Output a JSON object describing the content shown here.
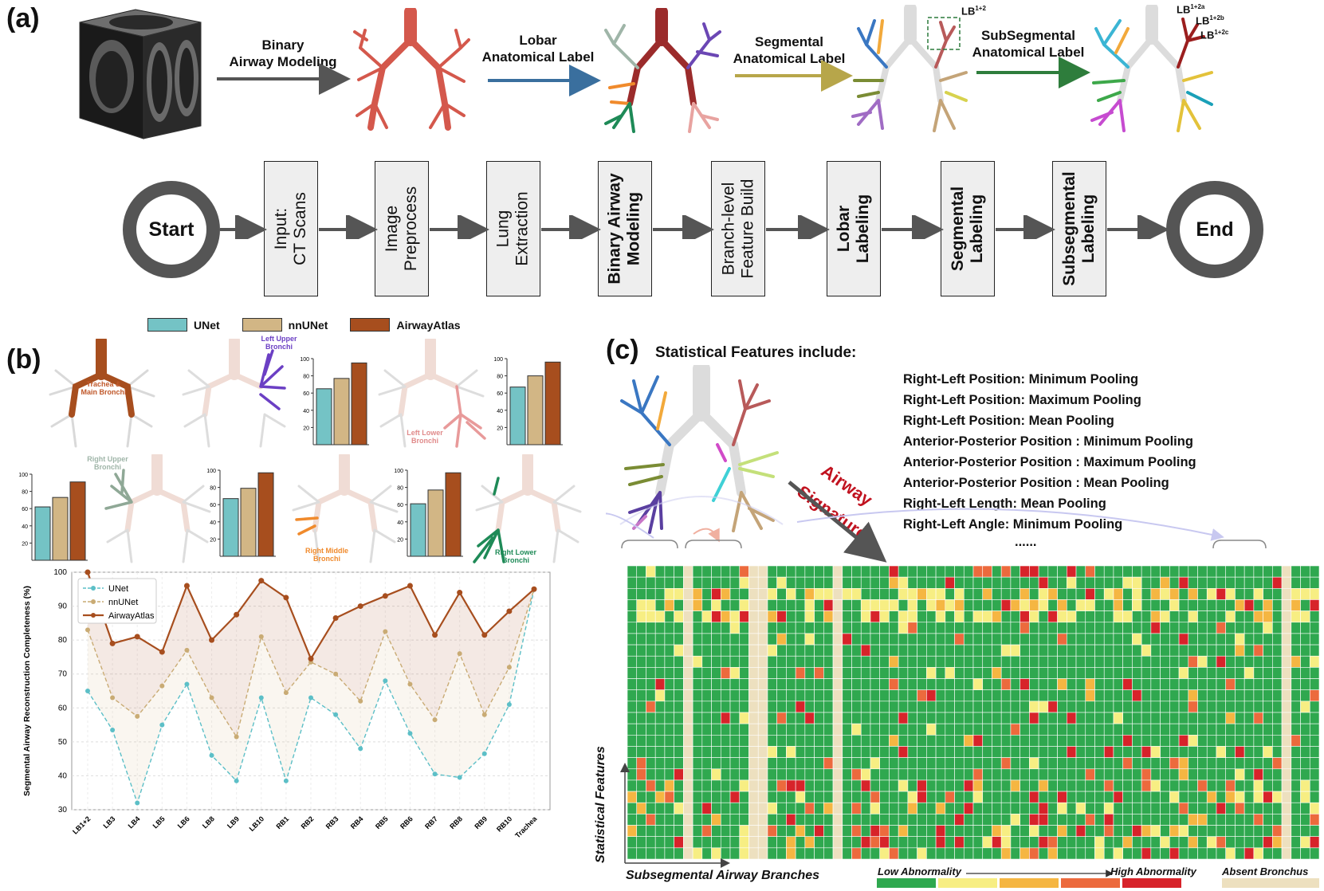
{
  "panel_a": {
    "label": "(a)",
    "arrows": [
      {
        "text": "Binary\nAirway Modeling",
        "color": "#555555"
      },
      {
        "text": "Lobar\nAnatomical Label",
        "color": "#3a6f9e"
      },
      {
        "text": "Segmental\nAnatomical Label",
        "color": "#b7a64a"
      },
      {
        "text": "SubSegmental\nAnatomical Label",
        "color": "#2e7d3c"
      }
    ],
    "annotations": {
      "lb12": "LB",
      "lb12_sup": "1+2",
      "lb12a": "LB",
      "lb12a_sup": "1+2a",
      "lb12b": "LB",
      "lb12b_sup": "1+2b",
      "lb12c": "LB",
      "lb12c_sup": "1+2c"
    },
    "start": "Start",
    "end": "End",
    "steps": [
      {
        "text": "Input:\nCT Scans",
        "bold": false
      },
      {
        "text": "Image\nPreprocess",
        "bold": false
      },
      {
        "text": "Lung\nExtraction",
        "bold": false
      },
      {
        "text": "Binary Airway\nModeling",
        "bold": true
      },
      {
        "text": "Branch-level\nFeature Build",
        "bold": false
      },
      {
        "text": "Lobar\nLabeling",
        "bold": true
      },
      {
        "text": "Segmental\nLabeling",
        "bold": true
      },
      {
        "text": "Subsegmental\nLabeling",
        "bold": true
      }
    ]
  },
  "panel_b": {
    "label": "(b)",
    "legend": [
      {
        "name": "UNet",
        "color": "#74c3c5"
      },
      {
        "name": "nnUNet",
        "color": "#d2b685"
      },
      {
        "name": "AirwayAtlas",
        "color": "#a74e1e"
      }
    ],
    "regions": {
      "trachea": "Trachea &\nMain Bronchi",
      "left_upper": "Left Upper\nBronchi",
      "left_lower": "Left Lower\nBronchi",
      "right_upper": "Right Upper\nBronchi",
      "right_middle": "Right Middle\nBronchi",
      "right_lower": "Right Lower\nBronchi"
    },
    "bar_ticks": [
      "100",
      "80",
      "60",
      "40",
      "20"
    ]
  },
  "panel_c": {
    "label": "(c)",
    "heading": "Statistical Features include:",
    "features": [
      "Right-Left Position: Minimum Pooling",
      "Right-Left Position: Maximum Pooling",
      "Right-Left Position: Mean Pooling",
      "Anterior-Posterior Position : Minimum Pooling",
      "Anterior-Posterior Position : Maximum Pooling",
      "Anterior-Posterior Position : Mean Pooling",
      "Right-Left Length: Mean Pooling",
      "Right-Left Angle: Minimum Pooling",
      "......"
    ],
    "signature": [
      "Airway",
      "Signature"
    ],
    "y_axis": "Statistical Features",
    "x_axis": "Subsegmental Airway Branches",
    "scale_low": "Low Abnormality",
    "scale_high": "High Abnormality",
    "absent": "Absent Bronchus",
    "scale_colors": [
      "#2fa84f",
      "#f7ee83",
      "#f5b642",
      "#ec6a3d",
      "#d7232a"
    ],
    "absent_color": "#ede0bf"
  },
  "chart_data": [
    {
      "type": "bar",
      "title": "Trachea & Main Bronchi / Left Upper Bronchi",
      "categories": [
        "UNet",
        "nnUNet",
        "AirwayAtlas"
      ],
      "values": [
        65,
        77,
        95
      ],
      "ylim": [
        0,
        100
      ]
    },
    {
      "type": "bar",
      "title": "Left Lower Bronchi",
      "categories": [
        "UNet",
        "nnUNet",
        "AirwayAtlas"
      ],
      "values": [
        67,
        80,
        96
      ],
      "ylim": [
        0,
        100
      ]
    },
    {
      "type": "bar",
      "title": "Right Upper Bronchi",
      "categories": [
        "UNet",
        "nnUNet",
        "AirwayAtlas"
      ],
      "values": [
        62,
        73,
        91
      ],
      "ylim": [
        0,
        100
      ]
    },
    {
      "type": "bar",
      "title": "Right Middle Bronchi",
      "categories": [
        "UNet",
        "nnUNet",
        "AirwayAtlas"
      ],
      "values": [
        67,
        79,
        97
      ],
      "ylim": [
        0,
        100
      ]
    },
    {
      "type": "bar",
      "title": "Right Lower Bronchi",
      "categories": [
        "UNet",
        "nnUNet",
        "AirwayAtlas"
      ],
      "values": [
        61,
        77,
        97
      ],
      "ylim": [
        0,
        100
      ]
    },
    {
      "type": "line",
      "ylabel": "Segmental Airway Reconstruction Completeness (%)",
      "ylim": [
        30,
        100
      ],
      "yticks": [
        30,
        40,
        50,
        60,
        70,
        80,
        90,
        100
      ],
      "categories": [
        "LB1+2",
        "LB3",
        "LB4",
        "LB5",
        "LB6",
        "LB8",
        "LB9",
        "LB10",
        "RB1",
        "RB2",
        "RB3",
        "RB4",
        "RB5",
        "RB6",
        "RB7",
        "RB8",
        "RB9",
        "RB10",
        "Trachea"
      ],
      "series": [
        {
          "name": "UNet",
          "color": "#5cbfc7",
          "values": [
            65,
            53.5,
            32,
            55,
            67,
            46,
            38.5,
            63,
            38.5,
            63,
            58,
            48,
            68,
            52.5,
            40.5,
            39.5,
            46.5,
            61,
            95
          ]
        },
        {
          "name": "nnUNet",
          "color": "#c9ab74",
          "values": [
            83,
            63,
            57.5,
            66.5,
            77,
            63,
            51.5,
            81,
            64.5,
            73.5,
            70,
            62,
            82.5,
            67,
            56.5,
            76,
            58,
            72,
            95
          ]
        },
        {
          "name": "AirwayAtlas",
          "color": "#a74e1e",
          "values": [
            100,
            79,
            81,
            76.5,
            96,
            80,
            87.5,
            97.5,
            92.5,
            74.5,
            86.5,
            90,
            93,
            96,
            81.5,
            94,
            81.5,
            88.5,
            95
          ]
        }
      ],
      "legend": "top-left",
      "grid": true
    }
  ]
}
